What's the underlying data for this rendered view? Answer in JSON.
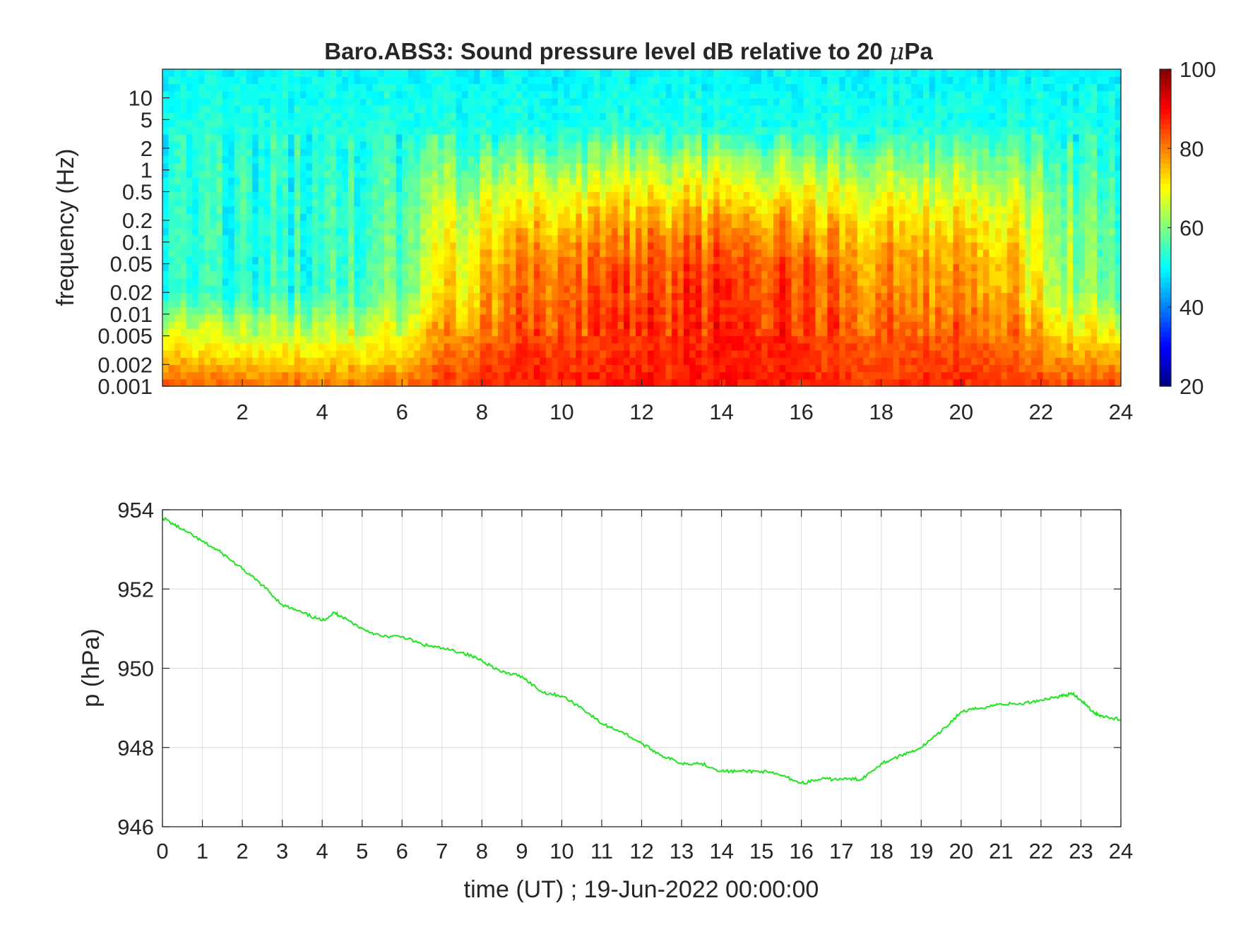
{
  "chart_data": [
    {
      "type": "heatmap",
      "title_prefix": "Baro.ABS3: Sound pressure level dB relative to 20 ",
      "title_mu": "μ",
      "title_suffix": "Pa",
      "ylabel": "frequency (Hz)",
      "xlabel": "",
      "xlim": [
        0,
        24
      ],
      "x_ticks": [
        2,
        4,
        6,
        8,
        10,
        12,
        14,
        16,
        18,
        20,
        22,
        24
      ],
      "y_scale": "log",
      "ylim": [
        0.001,
        25
      ],
      "y_ticks": [
        0.001,
        0.002,
        0.005,
        0.01,
        0.02,
        0.05,
        0.1,
        0.2,
        0.5,
        1,
        2,
        5,
        10
      ],
      "y_tick_labels": [
        "0.001",
        "0.002",
        "0.005",
        "0.01",
        "0.02",
        "0.05",
        "0.1",
        "0.2",
        "0.5",
        "1",
        "2",
        "5",
        "10"
      ],
      "colormap": "jet",
      "clim": [
        20,
        100
      ],
      "colorbar_ticks": [
        20,
        40,
        60,
        80,
        100
      ],
      "colorbar_labels": [
        "20",
        "40",
        "60",
        "80",
        "100"
      ],
      "level_profile_hours": [
        0,
        1,
        2,
        3,
        4,
        5,
        6,
        7,
        8,
        9,
        10,
        11,
        12,
        13,
        14,
        15,
        16,
        17,
        18,
        19,
        20,
        21,
        22,
        23,
        24
      ],
      "low_freq_level_db": [
        85,
        82,
        81,
        82,
        81,
        80,
        81,
        85,
        87,
        88,
        88,
        87,
        88,
        88,
        89,
        89,
        88,
        87,
        86,
        87,
        87,
        86,
        85,
        84,
        86
      ],
      "mid_freq_level_db": [
        55,
        52,
        52,
        53,
        54,
        55,
        58,
        70,
        76,
        82,
        84,
        83,
        84,
        85,
        86,
        87,
        85,
        82,
        79,
        80,
        78,
        77,
        68,
        62,
        58
      ],
      "high_freq_level_db": [
        48,
        48,
        48,
        48,
        48,
        48,
        48,
        48,
        48,
        48,
        48,
        48,
        48,
        48,
        48,
        48,
        48,
        48,
        48,
        48,
        48,
        48,
        48,
        48,
        48
      ]
    },
    {
      "type": "line",
      "ylabel": "p (hPa)",
      "xlabel": "time (UT) ; 19-Jun-2022 00:00:00",
      "xlim": [
        0,
        24
      ],
      "ylim": [
        946,
        954
      ],
      "x_ticks": [
        0,
        1,
        2,
        3,
        4,
        5,
        6,
        7,
        8,
        9,
        10,
        11,
        12,
        13,
        14,
        15,
        16,
        17,
        18,
        19,
        20,
        21,
        22,
        23,
        24
      ],
      "y_ticks": [
        946,
        948,
        950,
        952,
        954
      ],
      "grid": true,
      "line_color": "#1ee61e",
      "x": [
        0,
        0.5,
        1,
        1.5,
        2,
        2.5,
        3,
        3.5,
        4,
        4.3,
        4.5,
        5,
        5.5,
        6,
        6.5,
        7,
        7.5,
        8,
        8.5,
        9,
        9.5,
        10,
        10.5,
        11,
        11.5,
        12,
        12.5,
        13,
        13.5,
        14,
        14.5,
        15,
        15.5,
        16,
        16.5,
        17,
        17.5,
        18,
        18.5,
        19,
        19.5,
        20,
        20.5,
        21,
        21.5,
        22,
        22.5,
        22.8,
        23,
        23.3,
        23.5,
        24
      ],
      "y": [
        953.8,
        953.5,
        953.2,
        952.9,
        952.5,
        952.1,
        951.6,
        951.4,
        951.2,
        951.4,
        951.3,
        951.0,
        950.8,
        950.8,
        950.6,
        950.5,
        950.4,
        950.2,
        949.9,
        949.8,
        949.4,
        949.3,
        949.0,
        948.6,
        948.4,
        948.1,
        947.8,
        947.6,
        947.6,
        947.4,
        947.4,
        947.4,
        947.3,
        947.1,
        947.2,
        947.2,
        947.2,
        947.6,
        947.8,
        948.0,
        948.4,
        948.9,
        949.0,
        949.1,
        949.1,
        949.2,
        949.3,
        949.35,
        949.2,
        948.9,
        948.8,
        948.7
      ]
    }
  ]
}
